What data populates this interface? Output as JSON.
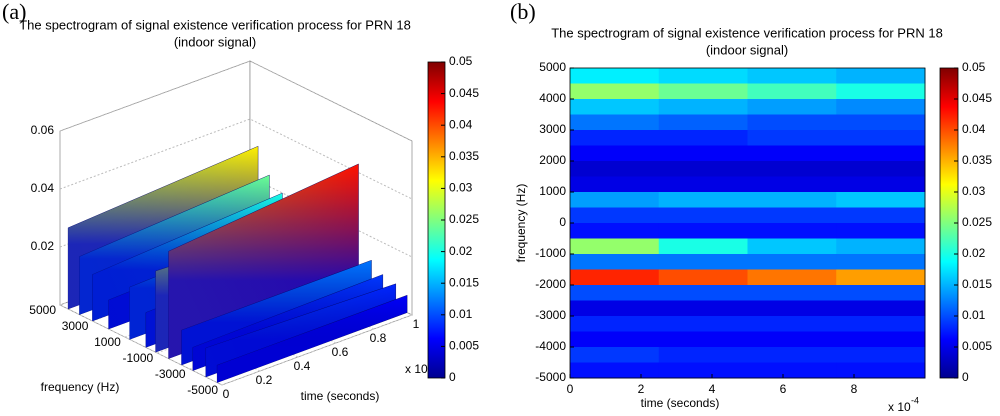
{
  "chart_data": [
    {
      "type": "surface3d",
      "panel_label": "(a)",
      "title": [
        "The spectrogram of signal existence verification process for PRN 18",
        "(indoor signal)"
      ],
      "xlabel": "time (seconds)",
      "ylabel": "frequency (Hz)",
      "x_offset_label": "x 10",
      "x": [
        0,
        1
      ],
      "xlim": [
        0,
        1
      ],
      "xticks": [
        0,
        0.2,
        0.4,
        0.6,
        0.8,
        1
      ],
      "ylim": [
        -5000,
        5000
      ],
      "yticks": [
        5000,
        3000,
        1000,
        -1000,
        -3000,
        -5000
      ],
      "zlim": [
        0,
        0.06
      ],
      "zticks": [
        0.02,
        0.04,
        0.06
      ],
      "clim": [
        0,
        0.05
      ],
      "cticks": [
        0,
        0.005,
        0.01,
        0.015,
        0.02,
        0.025,
        0.03,
        0.035,
        0.04,
        0.045,
        0.05
      ],
      "colormap": "jet",
      "grid": true,
      "ridges": [
        {
          "frequency": 4500,
          "values": [
            0.028,
            0.032
          ]
        },
        {
          "frequency": 3800,
          "values": [
            0.02,
            0.024
          ]
        },
        {
          "frequency": 3000,
          "values": [
            0.016,
            0.02
          ]
        },
        {
          "frequency": 2000,
          "values": [
            0.01,
            0.012
          ]
        },
        {
          "frequency": 700,
          "values": [
            0.018,
            0.02
          ]
        },
        {
          "frequency": -300,
          "values": [
            0.012,
            0.014
          ]
        },
        {
          "frequency": -900,
          "values": [
            0.028,
            0.025
          ]
        },
        {
          "frequency": -1700,
          "values": [
            0.037,
            0.043
          ]
        },
        {
          "frequency": -2500,
          "values": [
            0.012,
            0.012
          ]
        },
        {
          "frequency": -3200,
          "values": [
            0.008,
            0.009
          ]
        },
        {
          "frequency": -4000,
          "values": [
            0.01,
            0.008
          ]
        },
        {
          "frequency": -4700,
          "values": [
            0.006,
            0.006
          ]
        }
      ]
    },
    {
      "type": "heatmap",
      "panel_label": "(b)",
      "title": [
        "The spectrogram of signal existence verification process for PRN 18",
        "(indoor signal)"
      ],
      "xlabel": "time (seconds)",
      "ylabel": "frequency (Hz)",
      "x_offset_label": "x 10",
      "x_offset_exponent": "-4",
      "xlim": [
        0,
        10
      ],
      "xticks": [
        0,
        2,
        4,
        6,
        8
      ],
      "ylim": [
        -5000,
        5000
      ],
      "yticks": [
        5000,
        4000,
        3000,
        2000,
        1000,
        0,
        -1000,
        -2000,
        -3000,
        -4000,
        -5000
      ],
      "clim": [
        0,
        0.05
      ],
      "cticks": [
        0,
        0.005,
        0.01,
        0.015,
        0.02,
        0.025,
        0.03,
        0.035,
        0.04,
        0.045,
        0.05
      ],
      "colormap": "jet",
      "x_bins": [
        0,
        2.5,
        5,
        7.5,
        10
      ],
      "y_bins": [
        5000,
        4500,
        4000,
        3500,
        3000,
        2500,
        2000,
        1500,
        1000,
        500,
        0,
        -500,
        -1000,
        -1500,
        -2000,
        -2500,
        -3000,
        -3500,
        -4000,
        -4500,
        -5000
      ],
      "z": [
        [
          0.018,
          0.017,
          0.016,
          0.015
        ],
        [
          0.026,
          0.024,
          0.022,
          0.02
        ],
        [
          0.016,
          0.015,
          0.014,
          0.013
        ],
        [
          0.012,
          0.011,
          0.01,
          0.01
        ],
        [
          0.008,
          0.008,
          0.009,
          0.009
        ],
        [
          0.006,
          0.006,
          0.006,
          0.006
        ],
        [
          0.004,
          0.004,
          0.004,
          0.004
        ],
        [
          0.005,
          0.005,
          0.005,
          0.005
        ],
        [
          0.014,
          0.015,
          0.015,
          0.016
        ],
        [
          0.009,
          0.009,
          0.009,
          0.009
        ],
        [
          0.007,
          0.007,
          0.007,
          0.007
        ],
        [
          0.026,
          0.02,
          0.016,
          0.015
        ],
        [
          0.012,
          0.012,
          0.012,
          0.012
        ],
        [
          0.042,
          0.04,
          0.038,
          0.036
        ],
        [
          0.01,
          0.01,
          0.01,
          0.01
        ],
        [
          0.005,
          0.005,
          0.005,
          0.005
        ],
        [
          0.008,
          0.008,
          0.008,
          0.008
        ],
        [
          0.006,
          0.006,
          0.006,
          0.006
        ],
        [
          0.009,
          0.008,
          0.008,
          0.008
        ],
        [
          0.007,
          0.007,
          0.007,
          0.007
        ]
      ]
    }
  ]
}
